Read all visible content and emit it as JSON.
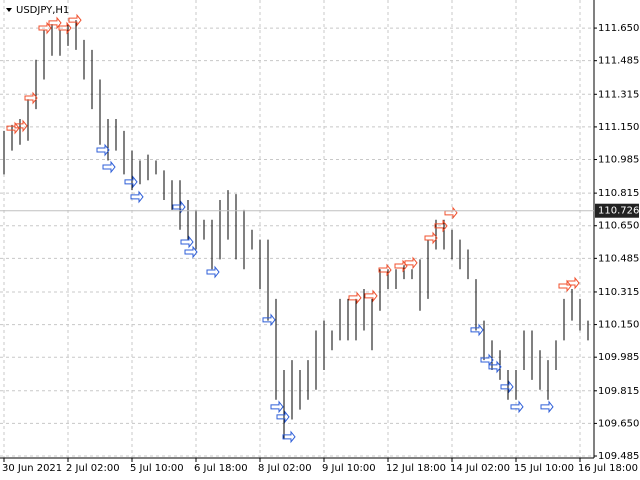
{
  "chart_data": {
    "type": "ohlc",
    "title": "USDJPY,H1",
    "x": [
      0,
      4,
      8,
      12,
      16,
      20,
      24,
      28,
      32,
      36,
      40,
      44,
      48,
      52,
      56,
      60,
      64,
      68,
      72,
      76,
      80,
      84,
      88,
      92,
      96,
      100,
      104,
      108,
      112,
      116,
      120,
      124,
      128,
      132,
      136,
      140,
      144,
      148,
      152,
      156,
      160,
      164,
      168,
      172,
      176,
      180,
      184,
      188,
      192,
      196,
      200,
      204,
      208,
      212,
      216,
      220,
      224,
      228,
      232,
      236,
      240,
      244,
      248,
      252,
      256,
      260,
      264,
      268,
      272,
      276,
      280,
      284,
      288,
      292
    ],
    "high": [
      111.13,
      111.16,
      111.19,
      111.29,
      111.49,
      111.64,
      111.67,
      111.64,
      111.67,
      111.69,
      111.59,
      111.54,
      111.39,
      111.19,
      111.19,
      111.13,
      111.03,
      110.98,
      111.01,
      110.98,
      110.93,
      110.88,
      110.88,
      110.78,
      110.73,
      110.68,
      110.68,
      110.78,
      110.83,
      110.81,
      110.73,
      110.63,
      110.58,
      110.58,
      110.28,
      109.92,
      109.97,
      109.92,
      109.97,
      110.12,
      110.17,
      110.12,
      110.28,
      110.28,
      110.28,
      110.33,
      110.28,
      110.43,
      110.43,
      110.43,
      110.45,
      110.43,
      110.48,
      110.58,
      110.68,
      110.68,
      110.63,
      110.58,
      110.53,
      110.38,
      110.17,
      110.07,
      110.02,
      109.92,
      109.92,
      110.12,
      110.12,
      110.02,
      109.97,
      110.07,
      110.28,
      110.33,
      110.28,
      110.17
    ],
    "low": [
      110.91,
      111.03,
      111.06,
      111.08,
      111.24,
      111.39,
      111.51,
      111.51,
      111.56,
      111.54,
      111.39,
      111.24,
      111.06,
      110.98,
      111.03,
      110.91,
      110.83,
      110.86,
      110.88,
      110.91,
      110.78,
      110.73,
      110.63,
      110.58,
      110.53,
      110.58,
      110.43,
      110.48,
      110.58,
      110.48,
      110.43,
      110.53,
      110.33,
      110.17,
      109.77,
      109.57,
      109.67,
      109.72,
      109.77,
      109.82,
      109.92,
      110.02,
      110.07,
      110.07,
      110.07,
      110.12,
      110.02,
      110.22,
      110.33,
      110.33,
      110.38,
      110.38,
      110.22,
      110.28,
      110.53,
      110.53,
      110.48,
      110.43,
      110.38,
      110.12,
      109.97,
      109.92,
      109.87,
      109.77,
      109.77,
      109.92,
      109.87,
      109.82,
      109.77,
      109.92,
      110.07,
      110.17,
      110.12,
      110.07
    ],
    "sell_signals": {
      "x": [
        4,
        8,
        13,
        20,
        25,
        30,
        35,
        175,
        183,
        190,
        198,
        203,
        213,
        218,
        223,
        280,
        284
      ],
      "y": [
        111.134,
        111.145,
        111.286,
        111.64,
        111.666,
        111.64,
        111.68,
        110.275,
        110.285,
        110.416,
        110.436,
        110.452,
        110.578,
        110.639,
        110.705,
        110.335,
        110.35
      ]
    },
    "buy_signals": {
      "x": [
        49,
        52,
        63,
        66,
        87,
        91,
        93,
        104,
        132,
        136,
        139,
        142,
        236,
        241,
        245,
        251,
        256,
        271
      ],
      "y": [
        111.043,
        110.957,
        110.882,
        110.806,
        110.755,
        110.578,
        110.527,
        110.426,
        110.184,
        109.744,
        109.693,
        109.592,
        110.133,
        109.981,
        109.946,
        109.845,
        109.744,
        109.744
      ]
    },
    "bar_color": "#000000",
    "sell_color": "#f0502d",
    "buy_color": "#2f5fd8",
    "current_price": {
      "value": 110.726,
      "label": "110.726"
    },
    "xlim": [
      -2,
      295
    ],
    "ylim": [
      109.475,
      111.792
    ],
    "xticks": [
      {
        "value": 0,
        "label": "30 Jun 2021"
      },
      {
        "value": 32,
        "label": "2 Jul 02:00"
      },
      {
        "value": 64,
        "label": "5 Jul 10:00"
      },
      {
        "value": 96,
        "label": "6 Jul 18:00"
      },
      {
        "value": 128,
        "label": "8 Jul 02:00"
      },
      {
        "value": 160,
        "label": "9 Jul 10:00"
      },
      {
        "value": 192,
        "label": "12 Jul 18:00"
      },
      {
        "value": 224,
        "label": "14 Jul 02:00"
      },
      {
        "value": 256,
        "label": "15 Jul 10:00"
      },
      {
        "value": 288,
        "label": "16 Jul 18:00"
      }
    ],
    "yticks": [
      {
        "value": 111.65,
        "label": "111.650"
      },
      {
        "value": 111.485,
        "label": "111.485"
      },
      {
        "value": 111.315,
        "label": "111.315"
      },
      {
        "value": 111.15,
        "label": "111.150"
      },
      {
        "value": 110.985,
        "label": "110.985"
      },
      {
        "value": 110.815,
        "label": "110.815"
      },
      {
        "value": 110.65,
        "label": "110.650"
      },
      {
        "value": 110.485,
        "label": "110.485"
      },
      {
        "value": 110.315,
        "label": "110.315"
      },
      {
        "value": 110.15,
        "label": "110.150"
      },
      {
        "value": 109.985,
        "label": "109.985"
      },
      {
        "value": 109.815,
        "label": "109.815"
      },
      {
        "value": 109.65,
        "label": "109.650"
      },
      {
        "value": 109.485,
        "label": "109.485"
      }
    ],
    "grid": true
  }
}
